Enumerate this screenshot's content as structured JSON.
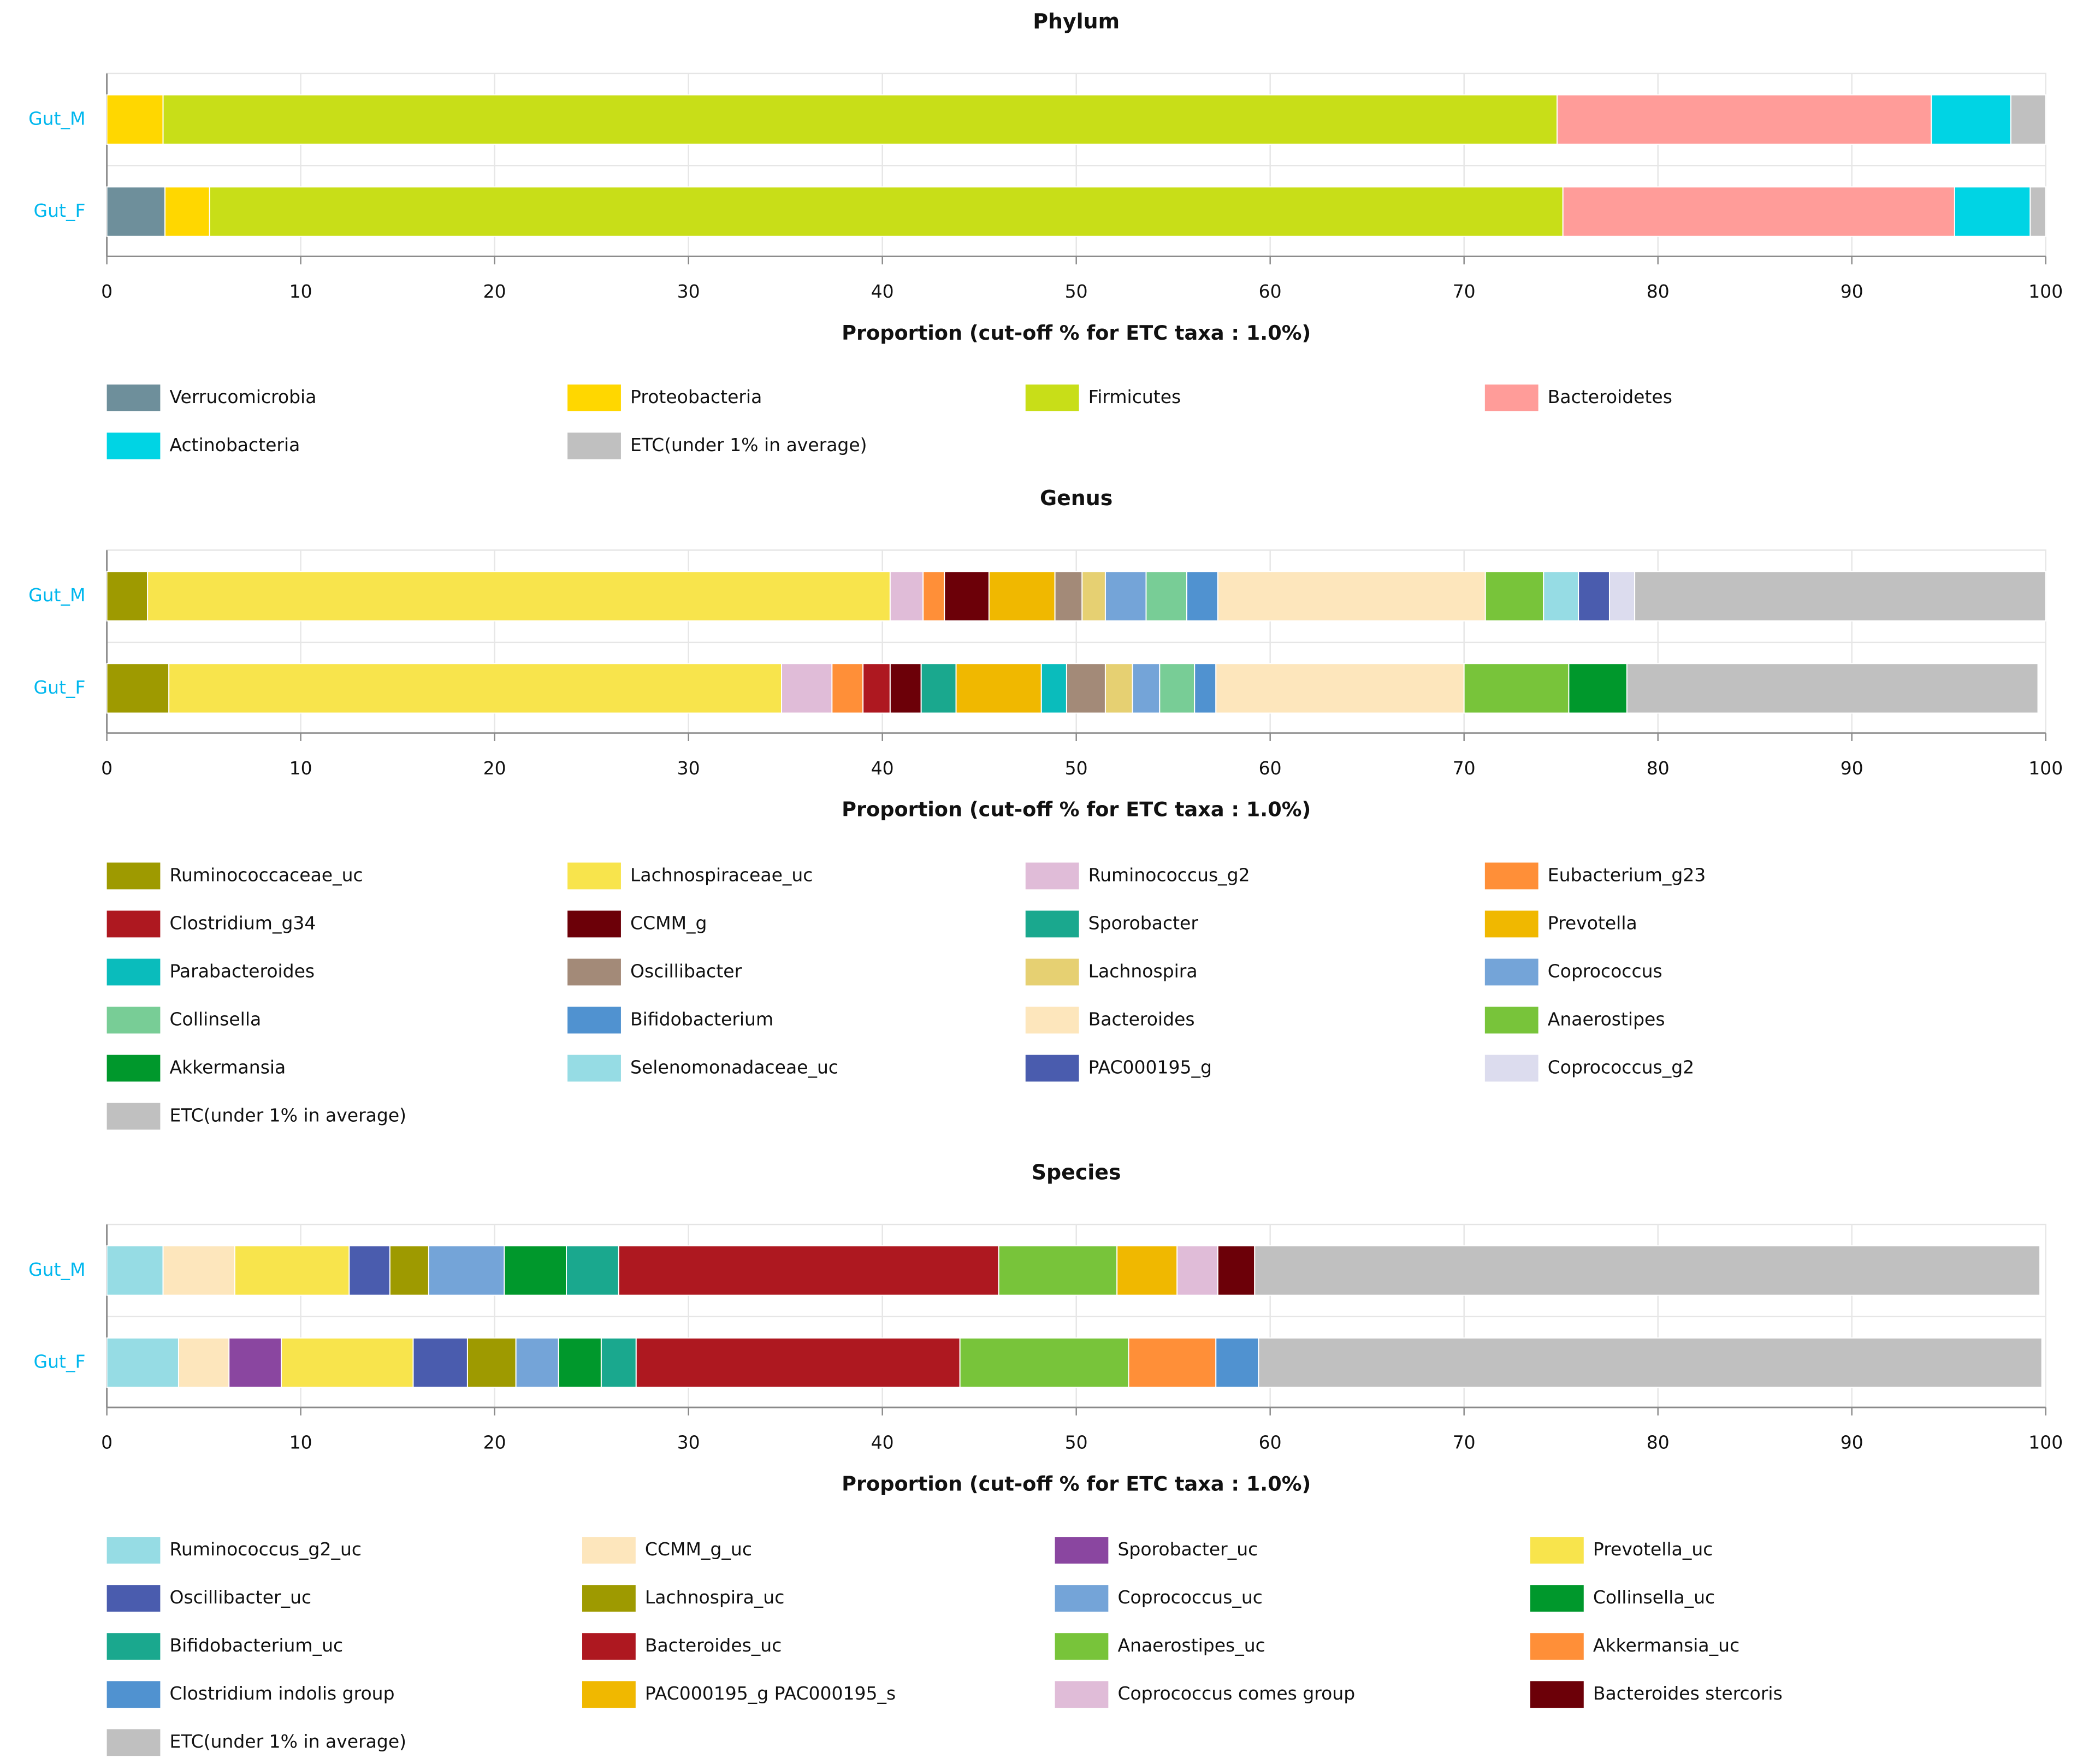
{
  "chart_data": [
    {
      "type": "bar",
      "orientation": "horizontal",
      "stacked": true,
      "title": "Phylum",
      "xlabel": "Proportion (cut-off % for ETC taxa : 1.0%)",
      "ylabel": "",
      "xlim": [
        0,
        100
      ],
      "xticks": [
        "0",
        "10",
        "20",
        "30",
        "40",
        "50",
        "60",
        "70",
        "80",
        "90",
        "100"
      ],
      "grid": true,
      "legend_position": "bottom",
      "categories": [
        "Gut_M",
        "Gut_F"
      ],
      "series": [
        {
          "name": "Verrucomicrobia",
          "color": "#6e8f9b",
          "values": [
            0,
            3.0
          ]
        },
        {
          "name": "Proteobacteria",
          "color": "#ffd700",
          "values": [
            2.9,
            2.3
          ]
        },
        {
          "name": "Firmicutes",
          "color": "#c8de18",
          "values": [
            71.9,
            69.8
          ]
        },
        {
          "name": "Bacteroidetes",
          "color": "#ff9c99",
          "values": [
            19.3,
            20.2
          ]
        },
        {
          "name": "Actinobacteria",
          "color": "#00d4e4",
          "values": [
            4.1,
            3.9
          ]
        },
        {
          "name": "ETC(under 1% in average)",
          "color": "#c0c0c0",
          "values": [
            1.8,
            0.8
          ]
        }
      ]
    },
    {
      "type": "bar",
      "orientation": "horizontal",
      "stacked": true,
      "title": "Genus",
      "xlabel": "Proportion (cut-off % for ETC taxa : 1.0%)",
      "ylabel": "",
      "xlim": [
        0,
        100
      ],
      "xticks": [
        "0",
        "10",
        "20",
        "30",
        "40",
        "50",
        "60",
        "70",
        "80",
        "90",
        "100"
      ],
      "grid": true,
      "legend_position": "bottom",
      "categories": [
        "Gut_M",
        "Gut_F"
      ],
      "series": [
        {
          "name": "Ruminococcaceae_uc",
          "color": "#9e9a00",
          "values": [
            2.1,
            3.2
          ]
        },
        {
          "name": "Lachnospiraceae_uc",
          "color": "#f8e44c",
          "values": [
            38.3,
            31.6
          ]
        },
        {
          "name": "Ruminococcus_g2",
          "color": "#e0bcd8",
          "values": [
            1.7,
            2.6
          ]
        },
        {
          "name": "Eubacterium_g23",
          "color": "#ff8f38",
          "values": [
            1.1,
            1.6
          ]
        },
        {
          "name": "Clostridium_g34",
          "color": "#ae1820",
          "values": [
            0,
            1.4
          ]
        },
        {
          "name": "CCMM_g",
          "color": "#6c0008",
          "values": [
            2.3,
            1.6
          ]
        },
        {
          "name": "Sporobacter",
          "color": "#1aa88e",
          "values": [
            0,
            1.8
          ]
        },
        {
          "name": "Prevotella",
          "color": "#f0b800",
          "values": [
            3.4,
            4.4
          ]
        },
        {
          "name": "Parabacteroides",
          "color": "#0abcbc",
          "values": [
            0,
            1.3
          ]
        },
        {
          "name": "Oscillibacter",
          "color": "#a38a78",
          "values": [
            1.4,
            2.0
          ]
        },
        {
          "name": "Lachnospira",
          "color": "#e6d072",
          "values": [
            1.2,
            1.4
          ]
        },
        {
          "name": "Coprococcus",
          "color": "#74a4d8",
          "values": [
            2.1,
            1.4
          ]
        },
        {
          "name": "Collinsella",
          "color": "#78cd96",
          "values": [
            2.1,
            1.8
          ]
        },
        {
          "name": "Bifidobacterium",
          "color": "#5092d0",
          "values": [
            1.6,
            1.1
          ]
        },
        {
          "name": "Bacteroides",
          "color": "#fde6bc",
          "values": [
            13.8,
            12.8
          ]
        },
        {
          "name": "Anaerostipes",
          "color": "#78c43a",
          "values": [
            3.0,
            5.4
          ]
        },
        {
          "name": "Akkermansia",
          "color": "#00982c",
          "values": [
            0,
            3.0
          ]
        },
        {
          "name": "Selenomonadaceae_uc",
          "color": "#96dce4",
          "values": [
            1.8,
            0
          ]
        },
        {
          "name": "PAC000195_g",
          "color": "#4a5cae",
          "values": [
            1.6,
            0
          ]
        },
        {
          "name": "Coprococcus_g2",
          "color": "#dcdcee",
          "values": [
            1.3,
            0
          ]
        },
        {
          "name": "ETC(under 1% in average)",
          "color": "#c0c0c0",
          "values": [
            21.2,
            21.2
          ]
        }
      ]
    },
    {
      "type": "bar",
      "orientation": "horizontal",
      "stacked": true,
      "title": "Species",
      "xlabel": "Proportion (cut-off % for ETC taxa : 1.0%)",
      "ylabel": "",
      "xlim": [
        0,
        100
      ],
      "xticks": [
        "0",
        "10",
        "20",
        "30",
        "40",
        "50",
        "60",
        "70",
        "80",
        "90",
        "100"
      ],
      "grid": true,
      "legend_position": "bottom",
      "categories": [
        "Gut_M",
        "Gut_F"
      ],
      "series": [
        {
          "name": "Ruminococcus_g2_uc",
          "color": "#96dce4",
          "values": [
            2.9,
            3.7
          ]
        },
        {
          "name": "CCMM_g_uc",
          "color": "#fde6bc",
          "values": [
            3.7,
            2.6
          ]
        },
        {
          "name": "Sporobacter_uc",
          "color": "#8a46a0",
          "values": [
            0,
            2.7
          ]
        },
        {
          "name": "Prevotella_uc",
          "color": "#f8e44c",
          "values": [
            5.9,
            6.8
          ]
        },
        {
          "name": "Oscillibacter_uc",
          "color": "#4a5cae",
          "values": [
            2.1,
            2.8
          ]
        },
        {
          "name": "Lachnospira_uc",
          "color": "#9e9a00",
          "values": [
            2.0,
            2.5
          ]
        },
        {
          "name": "Coprococcus_uc",
          "color": "#74a4d8",
          "values": [
            3.9,
            2.2
          ]
        },
        {
          "name": "Collinsella_uc",
          "color": "#00982c",
          "values": [
            3.2,
            2.2
          ]
        },
        {
          "name": "Bifidobacterium_uc",
          "color": "#1aa88e",
          "values": [
            2.7,
            1.8
          ]
        },
        {
          "name": "Bacteroides_uc",
          "color": "#ae1820",
          "values": [
            19.6,
            16.7
          ]
        },
        {
          "name": "Anaerostipes_uc",
          "color": "#78c43a",
          "values": [
            6.1,
            8.7
          ]
        },
        {
          "name": "Akkermansia_uc",
          "color": "#ff8f38",
          "values": [
            0,
            4.5
          ]
        },
        {
          "name": "Clostridium indolis group",
          "color": "#5092d0",
          "values": [
            0,
            2.2
          ]
        },
        {
          "name": "PAC000195_g PAC000195_s",
          "color": "#f0b800",
          "values": [
            3.1,
            0
          ]
        },
        {
          "name": "Coprococcus comes group",
          "color": "#e0bcd8",
          "values": [
            2.1,
            0
          ]
        },
        {
          "name": "Bacteroides stercoris",
          "color": "#6c0008",
          "values": [
            1.9,
            0
          ]
        },
        {
          "name": "ETC(under 1% in average)",
          "color": "#c0c0c0",
          "values": [
            40.5,
            40.4
          ]
        }
      ]
    }
  ]
}
